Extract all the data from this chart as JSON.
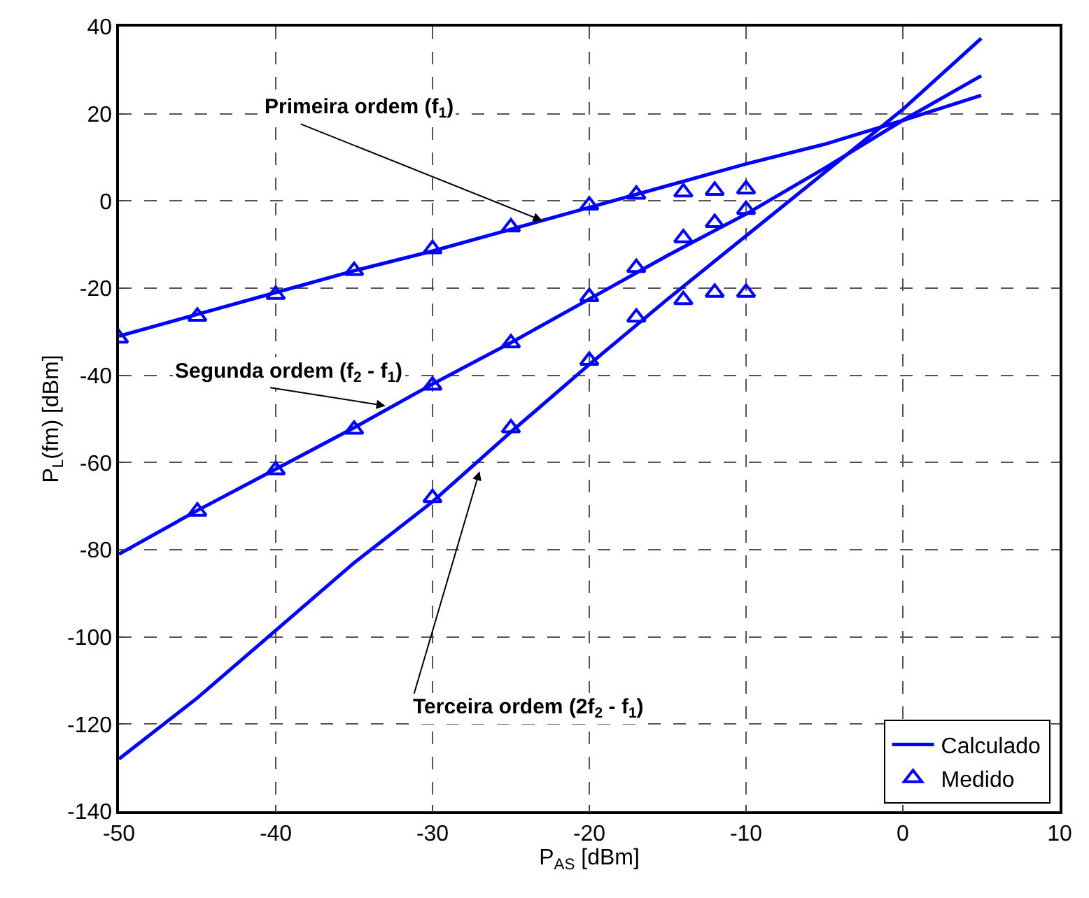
{
  "chart_data": {
    "type": "line",
    "xlabel": "P$_{AS}$ [dBm]",
    "ylabel": "P$_{L}$(fm) [dBm]",
    "xlim": [
      -50,
      10
    ],
    "xticks": [
      -50,
      -40,
      -30,
      -20,
      -10,
      0,
      10
    ],
    "ylim": [
      -140,
      40
    ],
    "yticks": [
      -140,
      -120,
      -100,
      -80,
      -60,
      -40,
      -20,
      0,
      20,
      40
    ],
    "grid": true,
    "legend": "bottom right",
    "series": [
      {
        "name": "Calculado",
        "marker": "none",
        "color": "#0000ff",
        "x": [
          -50,
          -45,
          -40,
          -35,
          -30,
          -25,
          -20,
          -15,
          -10,
          -5,
          0,
          5
        ],
        "values": [
          -31,
          -26,
          -21,
          -16,
          -11.5,
          -6.5,
          -1.5,
          3.5,
          8.5,
          13,
          18.5,
          24.2
        ]
      },
      {
        "marker": "none",
        "color": "#0000ff",
        "x": [
          -50,
          -45,
          -40,
          -35,
          -30,
          -25,
          -20,
          -15,
          -10,
          -5,
          0,
          5
        ],
        "values": [
          -81,
          -71,
          -61.5,
          -52,
          -42,
          -32.5,
          -22.5,
          -12.5,
          -3,
          7.5,
          18.5,
          28.7
        ]
      },
      {
        "marker": "none",
        "color": "#0000ff",
        "x": [
          -50,
          -45,
          -40,
          -35,
          -30,
          -25,
          -20,
          -15,
          -10,
          -5,
          0,
          5
        ],
        "values": [
          -128,
          -114,
          -98.5,
          -83,
          -69,
          -53,
          -37.5,
          -22.5,
          -8,
          6.5,
          21,
          37.3
        ]
      },
      {
        "name": "Medido",
        "type": "scatter",
        "marker": "triangle",
        "color": "#0000ff",
        "x": [
          -50,
          -45,
          -40,
          -35,
          -30,
          -25,
          -20,
          -17,
          -14,
          -12,
          -10
        ],
        "values": [
          -31.5,
          -26.5,
          -21.5,
          -16,
          -11,
          -6,
          -1,
          1.5,
          2,
          2.4,
          2.7
        ]
      },
      {
        "type": "scatter",
        "marker": "triangle",
        "color": "#0000ff",
        "x": [
          -45,
          -40,
          -35,
          -30,
          -25,
          -20,
          -17,
          -14,
          -12,
          -10
        ],
        "values": [
          -71.2,
          -61.7,
          -52.4,
          -42.3,
          -32.6,
          -22,
          -15.3,
          -8.5,
          -5,
          -2
        ]
      },
      {
        "type": "scatter",
        "marker": "triangle",
        "color": "#0000ff",
        "x": [
          -30,
          -25,
          -20,
          -17,
          -14,
          -12,
          -10
        ],
        "values": [
          -68.1,
          -52.1,
          -36.6,
          -26.7,
          -22.7,
          -21,
          -21
        ]
      }
    ],
    "annotations": [
      {
        "text": "Primeira ordem (f$_{1}$)",
        "x": -23,
        "y": -4.5
      },
      {
        "text": "Segunda ordem (f$_{2}$ - f$_{1}$)",
        "x": -33,
        "y": -47
      },
      {
        "text": "Terceira ordem (2f$_{2}$ - f$_{1}$)",
        "x": -27,
        "y": -62
      }
    ]
  }
}
